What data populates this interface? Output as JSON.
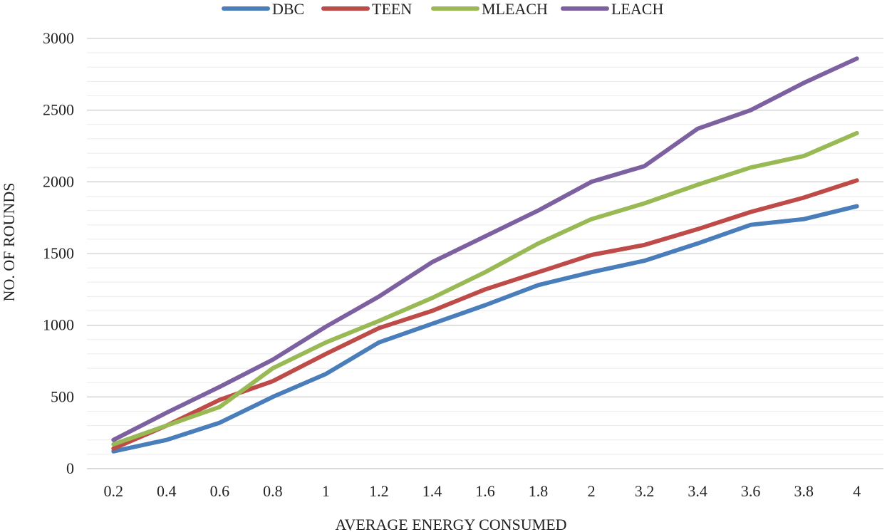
{
  "chart_data": {
    "type": "line",
    "title": "",
    "xlabel": "AVERAGE ENERGY CONSUMED",
    "ylabel": "NO. OF ROUNDS",
    "ylim": [
      0,
      3000
    ],
    "yticks": [
      0,
      500,
      1000,
      1500,
      2000,
      2500,
      3000
    ],
    "minor_step": 100,
    "grid": true,
    "legend_position": "top",
    "categories": [
      "0.2",
      "0.4",
      "0.6",
      "0.8",
      "1",
      "1.2",
      "1.4",
      "1.6",
      "1.8",
      "2",
      "3.2",
      "3.4",
      "3.6",
      "3.8",
      "4"
    ],
    "series": [
      {
        "name": "DBC",
        "color": "#4a7ebb",
        "values": [
          120,
          200,
          320,
          500,
          660,
          880,
          1010,
          1140,
          1280,
          1370,
          1450,
          1570,
          1700,
          1740,
          1830
        ]
      },
      {
        "name": "TEEN",
        "color": "#be4b48",
        "values": [
          140,
          300,
          480,
          610,
          800,
          980,
          1100,
          1250,
          1370,
          1490,
          1560,
          1670,
          1790,
          1890,
          2010
        ]
      },
      {
        "name": "MLEACH",
        "color": "#98b954",
        "values": [
          170,
          300,
          430,
          700,
          880,
          1030,
          1190,
          1370,
          1570,
          1740,
          1850,
          1980,
          2100,
          2180,
          2340
        ]
      },
      {
        "name": "LEACH",
        "color": "#7d60a0",
        "values": [
          200,
          390,
          570,
          760,
          990,
          1200,
          1440,
          1620,
          1800,
          2000,
          2110,
          2370,
          2500,
          2690,
          2860
        ]
      }
    ]
  }
}
